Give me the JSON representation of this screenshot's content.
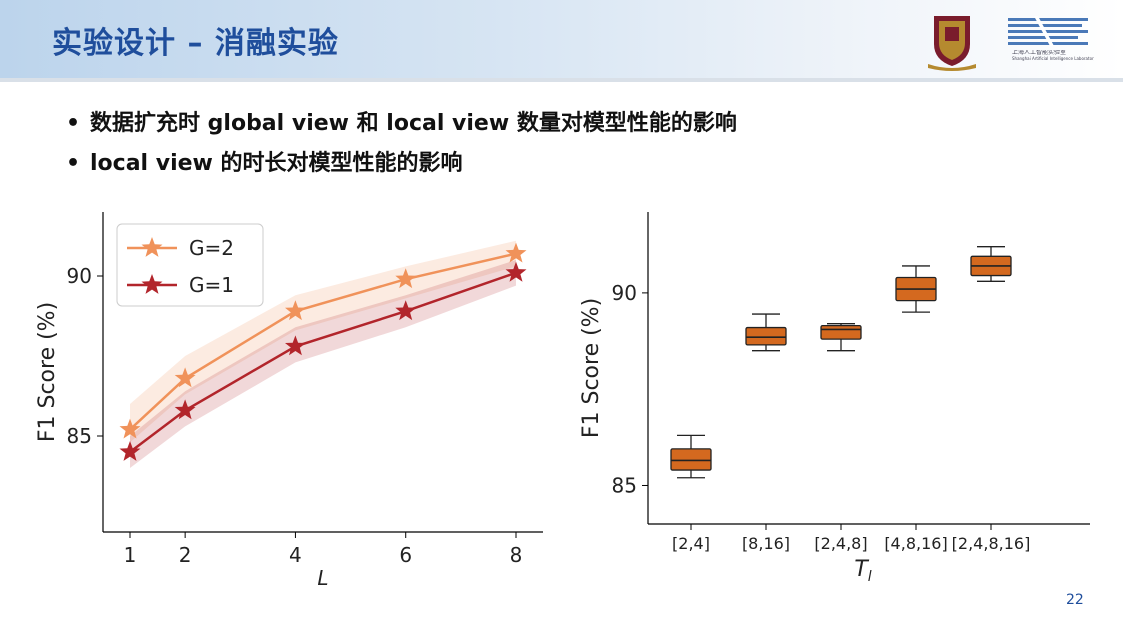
{
  "slide": {
    "title": "实验设计 – 消融实验",
    "bullets": [
      "数据扩充时 global view 和 local view 数量对模型性能的影响",
      "local view 的时长对模型性能的影响"
    ],
    "page_number": "22",
    "logos": [
      "university-crest-logo",
      "shanghai-ai-lab-logo"
    ],
    "lab_logo_text": "上海人工智能实验室",
    "lab_logo_subtext": "Shanghai Artificial Intelligence Laboratory",
    "colors": {
      "title": "#1f4e9c",
      "g2_line": "#f0925a",
      "g1_line": "#b2252b",
      "box_fill": "#d4691f"
    }
  },
  "chart_data": [
    {
      "type": "line",
      "x": [
        1,
        2,
        4,
        6,
        8
      ],
      "xlabel": "L",
      "ylabel": "F1 Score (%)",
      "ylim": [
        82,
        92
      ],
      "yticks": [
        85,
        90
      ],
      "xticks": [
        1,
        2,
        4,
        6,
        8
      ],
      "legend": "top-left",
      "series": [
        {
          "name": "G=2",
          "values": [
            85.2,
            86.8,
            88.9,
            89.9,
            90.7
          ],
          "band_low": [
            84.8,
            86.3,
            88.3,
            89.3,
            90.3
          ],
          "band_high": [
            86.0,
            87.5,
            89.4,
            90.3,
            91.1
          ],
          "color": "#f0925a",
          "marker": "star"
        },
        {
          "name": "G=1",
          "values": [
            84.5,
            85.8,
            87.8,
            88.9,
            90.1
          ],
          "band_low": [
            84.0,
            85.3,
            87.3,
            88.4,
            89.7
          ],
          "band_high": [
            85.0,
            86.4,
            88.4,
            89.4,
            90.5
          ],
          "color": "#b2252b",
          "marker": "star"
        }
      ]
    },
    {
      "type": "box",
      "categories": [
        "[2,4]",
        "[8,16]",
        "[2,4,8]",
        "[4,8,16]",
        "[2,4,8,16]"
      ],
      "xlabel": "T_l",
      "ylabel": "F1 Score (%)",
      "ylim": [
        84,
        92.1
      ],
      "yticks": [
        85,
        90
      ],
      "boxes": [
        {
          "min": 85.2,
          "q1": 85.4,
          "median": 85.65,
          "q3": 85.95,
          "max": 86.3
        },
        {
          "min": 88.5,
          "q1": 88.65,
          "median": 88.85,
          "q3": 89.1,
          "max": 89.45
        },
        {
          "min": 88.5,
          "q1": 88.8,
          "median": 89.05,
          "q3": 89.15,
          "max": 89.2
        },
        {
          "min": 89.5,
          "q1": 89.8,
          "median": 90.1,
          "q3": 90.4,
          "max": 90.7
        },
        {
          "min": 90.3,
          "q1": 90.45,
          "median": 90.7,
          "q3": 90.95,
          "max": 91.2
        }
      ],
      "color": "#d4691f"
    }
  ]
}
